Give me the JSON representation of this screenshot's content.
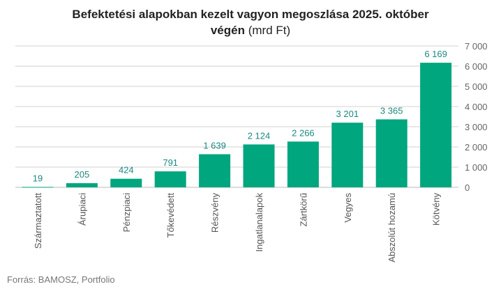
{
  "chart_data": {
    "type": "bar",
    "title_bold_1": "Befektetési alapokban kezelt vagyon megoszlása 2025. október",
    "title_bold_2": "végén",
    "title_light": "(mrd Ft)",
    "categories": [
      "Származtatott",
      "Árupiaci",
      "Pénzpiaci",
      "Tőkevédett",
      "Részvény",
      "Ingatlanalapok",
      "Zártkörű",
      "Vegyes",
      "Abszolút hozamú",
      "Kötvény"
    ],
    "values": [
      19,
      205,
      424,
      791,
      1639,
      2124,
      2266,
      3201,
      3365,
      6169
    ],
    "data_labels": [
      "19",
      "205",
      "424",
      "791",
      "1 639",
      "2 124",
      "2 266",
      "3 201",
      "3 365",
      "6 169"
    ],
    "ylim": [
      0,
      7000
    ],
    "yticks": [
      0,
      1000,
      2000,
      3000,
      4000,
      5000,
      6000,
      7000
    ],
    "ytick_labels": [
      "0",
      "1 000",
      "2 000",
      "3 000",
      "4 000",
      "5 000",
      "6 000",
      "7 000"
    ],
    "y_axis_side": "right",
    "grid": true,
    "bar_color": "#00a67e",
    "label_color": "#1a8a80",
    "source": "Forrás: BAMOSZ, Portfolio"
  }
}
